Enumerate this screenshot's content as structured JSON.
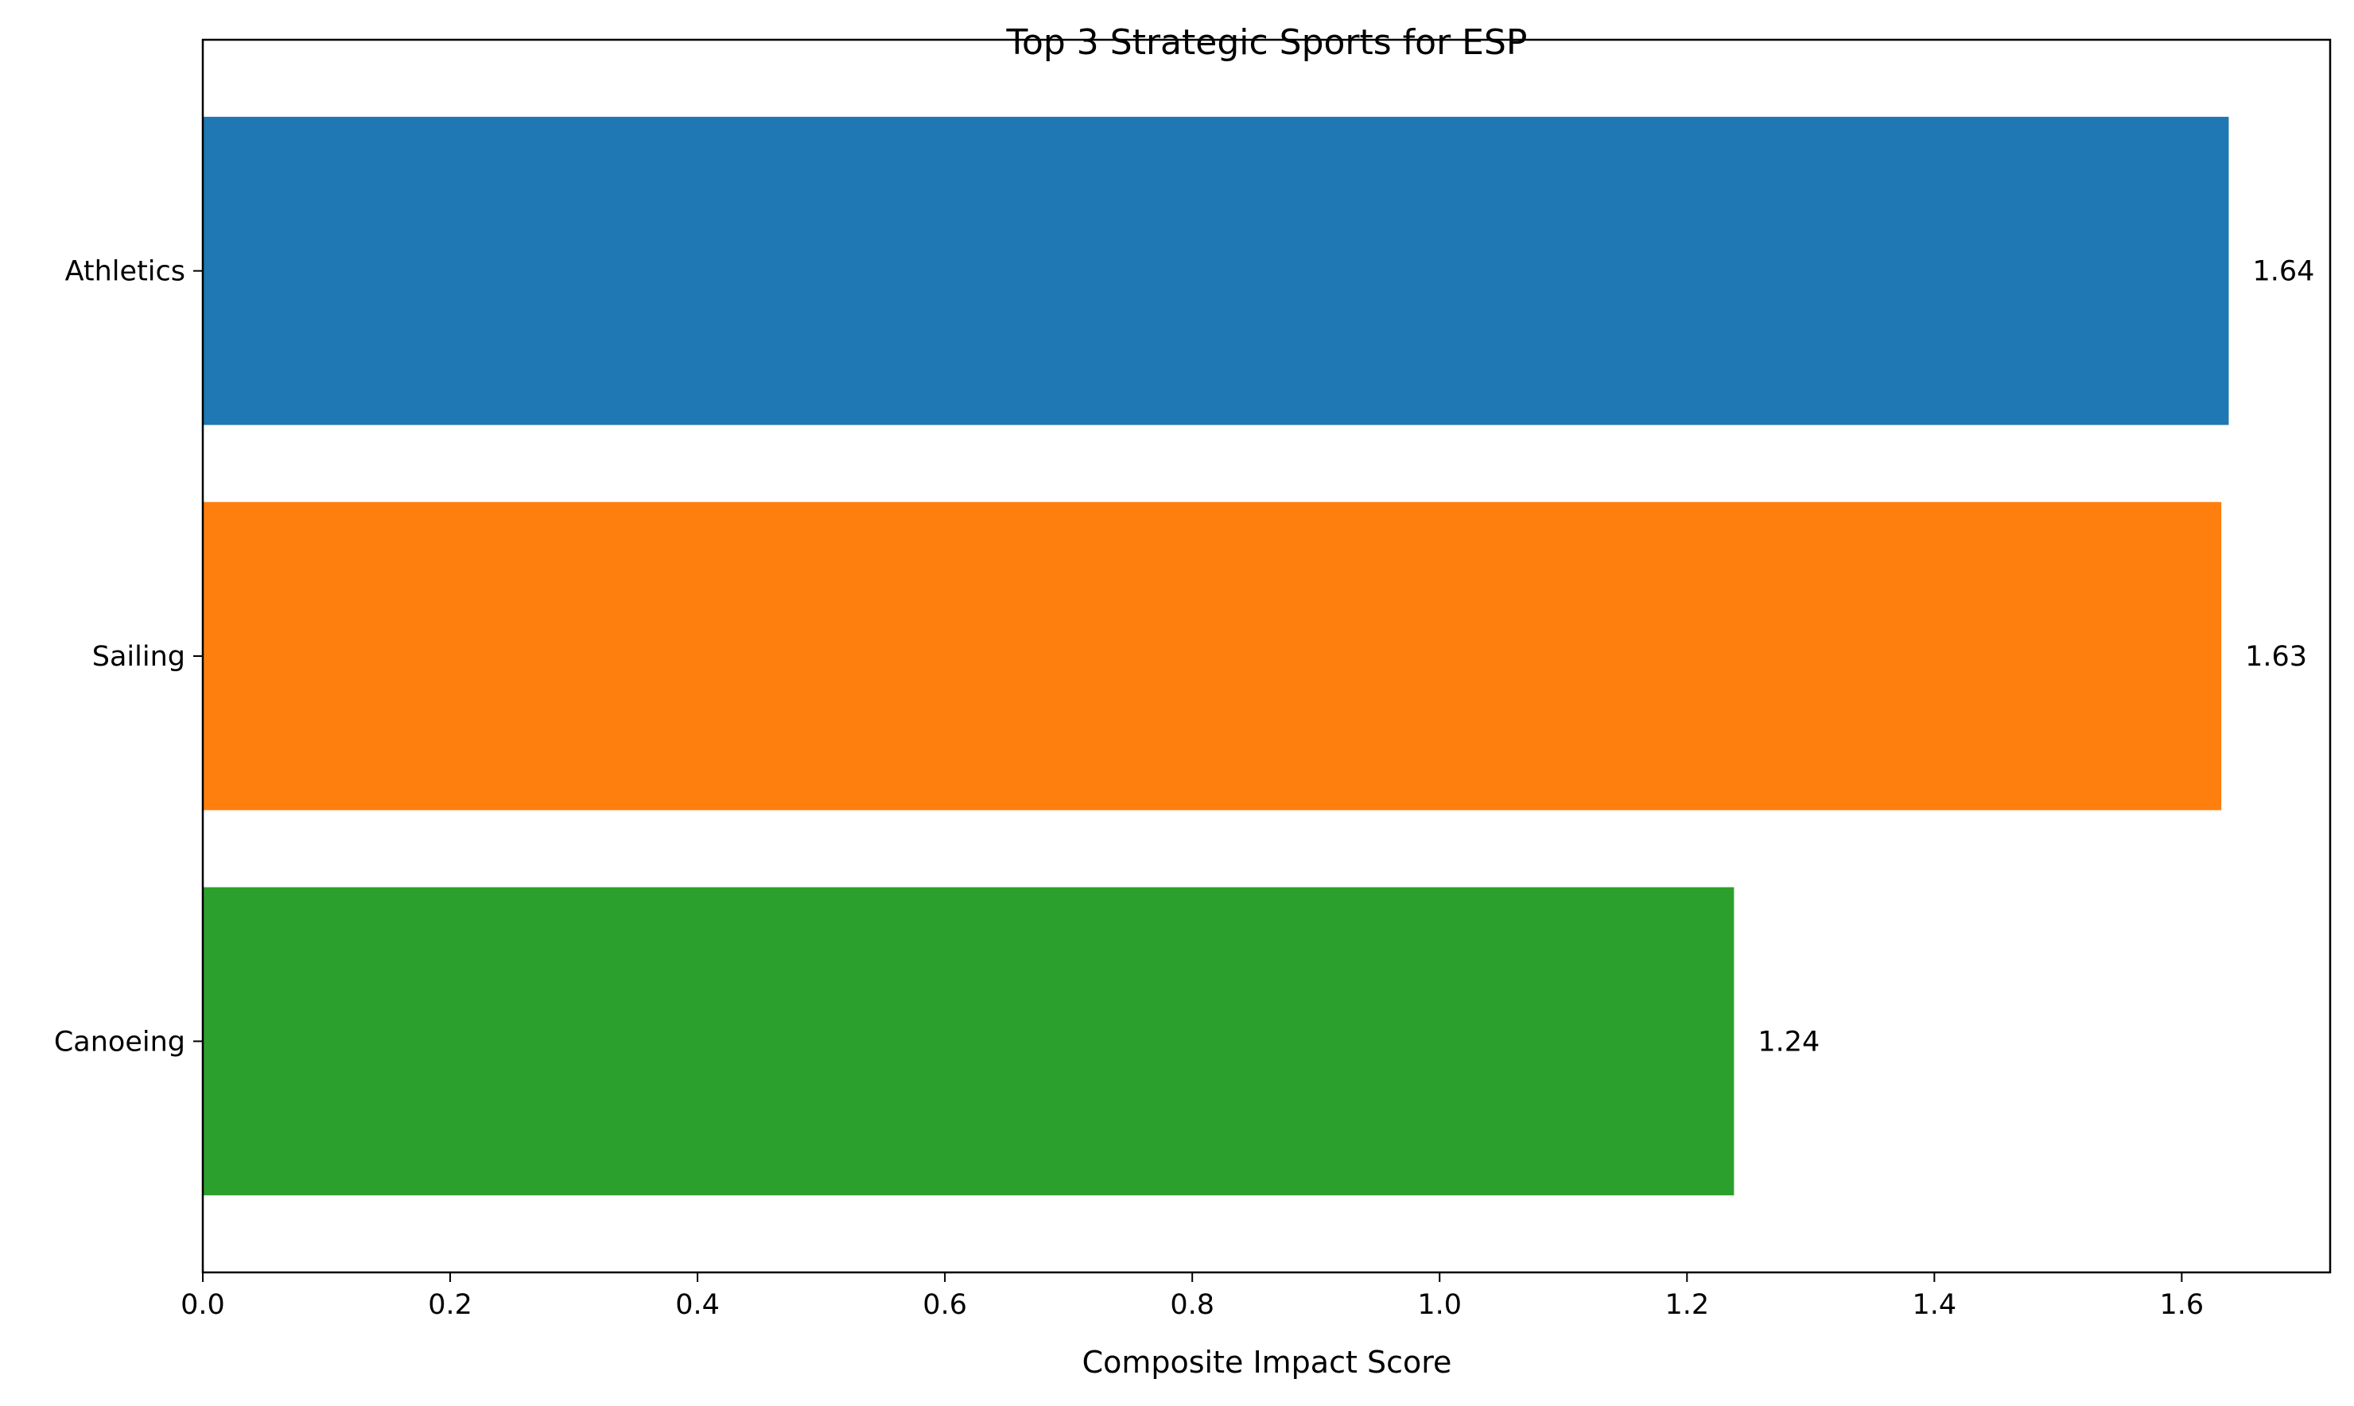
{
  "chart_data": {
    "type": "bar",
    "orientation": "horizontal",
    "title": "Top 3 Strategic Sports for ESP",
    "xlabel": "Composite Impact Score",
    "ylabel": "",
    "categories": [
      "Athletics",
      "Sailing",
      "Canoeing"
    ],
    "values": [
      1.638,
      1.632,
      1.238
    ],
    "value_labels": [
      "1.64",
      "1.63",
      "1.24"
    ],
    "colors": [
      "#1f77b4",
      "#ff7f0e",
      "#2ca02c"
    ],
    "xlim": [
      0,
      1.72
    ],
    "xticks": [
      0.0,
      0.2,
      0.4,
      0.6,
      0.8,
      1.0,
      1.2,
      1.4,
      1.6
    ],
    "xtick_labels": [
      "0.0",
      "0.2",
      "0.4",
      "0.6",
      "0.8",
      "1.0",
      "1.2",
      "1.4",
      "1.6"
    ],
    "grid": false,
    "legend": "none"
  }
}
